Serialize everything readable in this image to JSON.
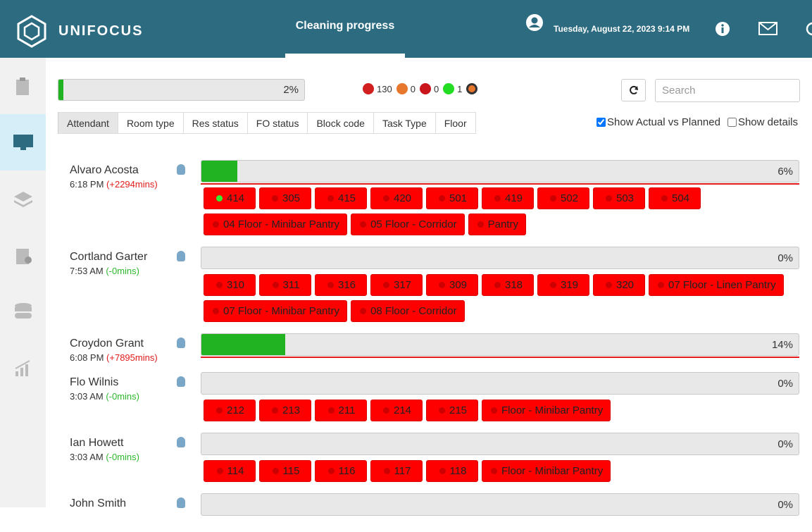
{
  "header": {
    "brand": "UNIFOCUS",
    "title": "Cleaning progress",
    "datetime": "Tuesday, August 22, 2023 9:14 PM"
  },
  "summary": {
    "progress": {
      "value": 2,
      "label": "2%"
    },
    "status_counts": [
      {
        "color": "#d11f1f",
        "count": 130
      },
      {
        "color": "#e8772e",
        "count": 0
      },
      {
        "color": "#c9151b",
        "count": 0
      },
      {
        "color": "#22dd22",
        "count": 1
      }
    ]
  },
  "search_placeholder": "Search",
  "tabs": [
    "Attendant",
    "Room type",
    "Res status",
    "FO status",
    "Block code",
    "Task Type",
    "Floor"
  ],
  "options": [
    {
      "label": "Show Actual vs Planned",
      "checked": true
    },
    {
      "label": "Show details",
      "checked": false
    }
  ],
  "attendants": [
    {
      "name": "Alvaro Acosta",
      "time": "6:18 PM",
      "delta": "(+2294mins)",
      "late": true,
      "progress": {
        "value": 6,
        "label": "6%"
      },
      "tasks": [
        {
          "label": "414",
          "active": true
        },
        {
          "label": "305",
          "active": false
        },
        {
          "label": "415",
          "active": false
        },
        {
          "label": "420",
          "active": false
        },
        {
          "label": "501",
          "active": false
        },
        {
          "label": "419",
          "active": false
        },
        {
          "label": "502",
          "active": false
        },
        {
          "label": "503",
          "active": false
        },
        {
          "label": "504",
          "active": false
        },
        {
          "label": "04 Floor - Minibar Pantry",
          "active": false
        },
        {
          "label": "05 Floor - Corridor",
          "active": false
        },
        {
          "label": "Pantry",
          "active": false
        }
      ]
    },
    {
      "name": "Cortland Garter",
      "time": "7:53 AM",
      "delta": "(-0mins)",
      "late": false,
      "progress": {
        "value": 0,
        "label": "0%"
      },
      "tasks": [
        {
          "label": "310",
          "active": false
        },
        {
          "label": "311",
          "active": false
        },
        {
          "label": "316",
          "active": false
        },
        {
          "label": "317",
          "active": false
        },
        {
          "label": "309",
          "active": false
        },
        {
          "label": "318",
          "active": false
        },
        {
          "label": "319",
          "active": false
        },
        {
          "label": "320",
          "active": false
        },
        {
          "label": "07 Floor - Linen Pantry",
          "active": false
        },
        {
          "label": "07 Floor - Minibar Pantry",
          "active": false
        },
        {
          "label": "08 Floor - Corridor",
          "active": false
        }
      ]
    },
    {
      "name": "Croydon Grant",
      "time": "6:08 PM",
      "delta": "(+7895mins)",
      "late": true,
      "progress": {
        "value": 14,
        "label": "14%"
      },
      "tasks": []
    },
    {
      "name": "Flo Wilnis",
      "time": "3:03 AM",
      "delta": "(-0mins)",
      "late": false,
      "progress": {
        "value": 0,
        "label": "0%"
      },
      "tasks": [
        {
          "label": "212",
          "active": false
        },
        {
          "label": "213",
          "active": false
        },
        {
          "label": "211",
          "active": false
        },
        {
          "label": "214",
          "active": false
        },
        {
          "label": "215",
          "active": false
        },
        {
          "label": "Floor - Minibar Pantry",
          "active": false
        }
      ]
    },
    {
      "name": "Ian Howett",
      "time": "3:03 AM",
      "delta": "(-0mins)",
      "late": false,
      "progress": {
        "value": 0,
        "label": "0%"
      },
      "tasks": [
        {
          "label": "114",
          "active": false
        },
        {
          "label": "115",
          "active": false
        },
        {
          "label": "116",
          "active": false
        },
        {
          "label": "117",
          "active": false
        },
        {
          "label": "118",
          "active": false
        },
        {
          "label": "Floor - Minibar Pantry",
          "active": false
        }
      ]
    },
    {
      "name": "John Smith",
      "time": "",
      "delta": "",
      "late": false,
      "progress": {
        "value": 0,
        "label": "0%"
      },
      "tasks": []
    }
  ]
}
